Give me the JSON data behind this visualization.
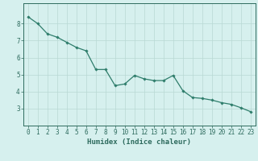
{
  "x": [
    0,
    1,
    2,
    3,
    4,
    5,
    6,
    7,
    8,
    9,
    10,
    11,
    12,
    13,
    14,
    15,
    16,
    17,
    18,
    19,
    20,
    21,
    22,
    23
  ],
  "y": [
    8.4,
    8.0,
    7.4,
    7.2,
    6.9,
    6.6,
    6.4,
    5.3,
    5.3,
    4.35,
    4.45,
    4.95,
    4.75,
    4.65,
    4.65,
    4.95,
    4.05,
    3.65,
    3.6,
    3.5,
    3.35,
    3.25,
    3.05,
    2.82
  ],
  "line_color": "#2E7D6B",
  "marker": "D",
  "marker_size": 1.8,
  "line_width": 0.9,
  "background_color": "#D6F0EE",
  "grid_color": "#B8D8D4",
  "xlabel": "Humidex (Indice chaleur)",
  "xlim": [
    -0.5,
    23.5
  ],
  "ylim": [
    2.0,
    9.2
  ],
  "yticks": [
    3,
    4,
    5,
    6,
    7,
    8
  ],
  "xticks": [
    0,
    1,
    2,
    3,
    4,
    5,
    6,
    7,
    8,
    9,
    10,
    11,
    12,
    13,
    14,
    15,
    16,
    17,
    18,
    19,
    20,
    21,
    22,
    23
  ],
  "tick_fontsize": 5.5,
  "xlabel_fontsize": 6.5,
  "axis_color": "#2E6B5E",
  "tick_color": "#2E6B5E"
}
